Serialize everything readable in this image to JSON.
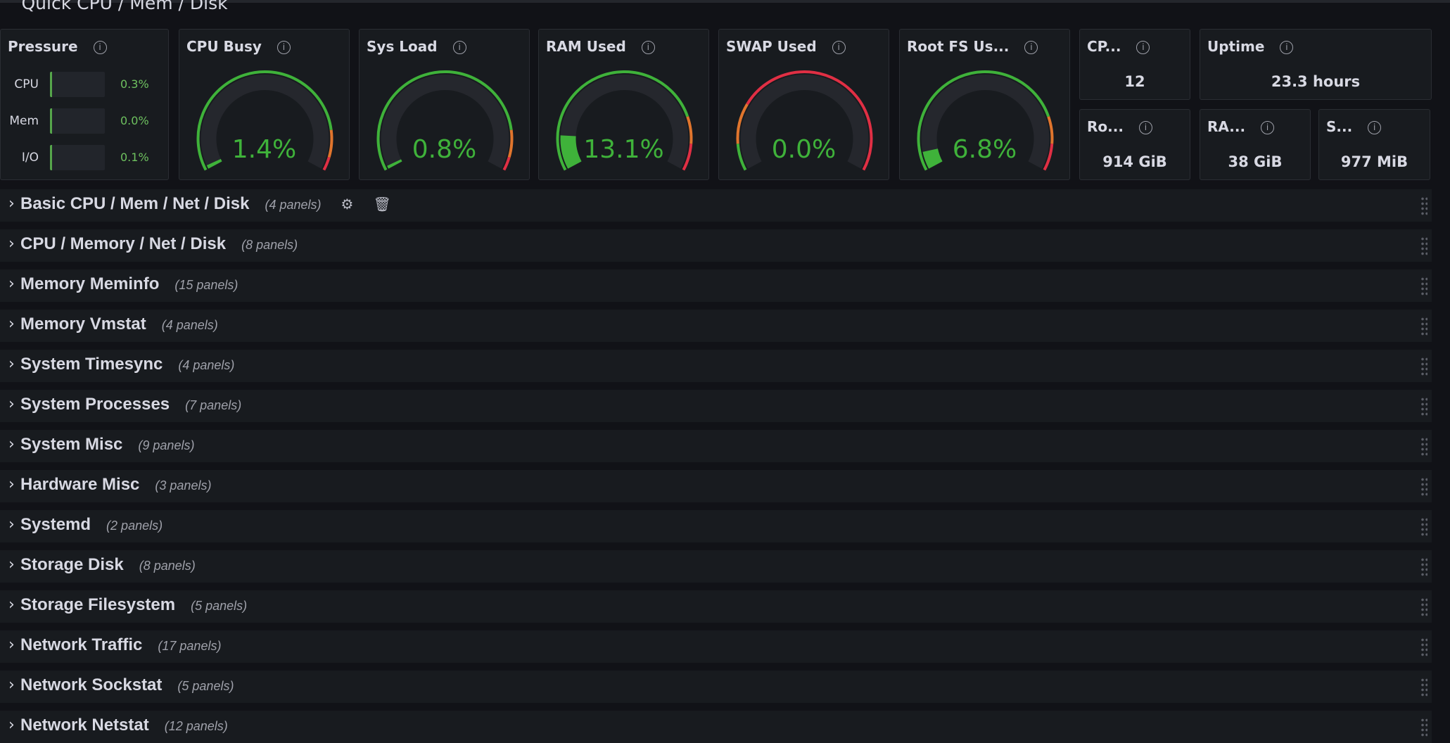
{
  "section": {
    "title": "Quick CPU / Mem / Disk",
    "chevron": "chevron-down-icon"
  },
  "colors": {
    "green": "#3fb23a",
    "orange": "#e0752d",
    "red": "#e02f44",
    "track": "#25272d"
  },
  "pressure": {
    "title": "Pressure",
    "items": [
      {
        "label": "CPU",
        "value": "0.3%"
      },
      {
        "label": "Mem",
        "value": "0.0%"
      },
      {
        "label": "I/O",
        "value": "0.1%"
      }
    ]
  },
  "gauges": [
    {
      "title": "CPU Busy",
      "value": "1.4%",
      "percent": 1.4,
      "thresholds": [
        {
          "from": 0,
          "color": "green"
        },
        {
          "from": 85,
          "color": "orange"
        },
        {
          "from": 95,
          "color": "red"
        }
      ]
    },
    {
      "title": "Sys Load",
      "value": "0.8%",
      "percent": 0.8,
      "thresholds": [
        {
          "from": 0,
          "color": "green"
        },
        {
          "from": 85,
          "color": "orange"
        },
        {
          "from": 95,
          "color": "red"
        }
      ]
    },
    {
      "title": "RAM Used",
      "value": "13.1%",
      "percent": 13.1,
      "thresholds": [
        {
          "from": 0,
          "color": "green"
        },
        {
          "from": 80,
          "color": "orange"
        },
        {
          "from": 90,
          "color": "red"
        }
      ]
    },
    {
      "title": "SWAP Used",
      "value": "0.0%",
      "percent": 0,
      "thresholds": [
        {
          "from": 0,
          "color": "green"
        },
        {
          "from": 10,
          "color": "orange"
        },
        {
          "from": 25,
          "color": "red"
        }
      ]
    },
    {
      "title": "Root FS Us...",
      "value": "6.8%",
      "percent": 6.8,
      "thresholds": [
        {
          "from": 0,
          "color": "green"
        },
        {
          "from": 80,
          "color": "orange"
        },
        {
          "from": 90,
          "color": "red"
        }
      ]
    }
  ],
  "stats": [
    {
      "title": "CP...",
      "value": "12"
    },
    {
      "title": "Uptime",
      "value": "23.3 hours"
    },
    {
      "title": "Ro...",
      "value": "914 GiB"
    },
    {
      "title": "RA...",
      "value": "38 GiB"
    },
    {
      "title": "S...",
      "value": "977 MiB"
    }
  ],
  "info_glyph": "i",
  "chevron_right": "›",
  "rows": [
    {
      "title": "Basic CPU / Mem / Net / Disk",
      "count": "(4 panels)"
    },
    {
      "title": "CPU / Memory / Net / Disk",
      "count": "(8 panels)"
    },
    {
      "title": "Memory Meminfo",
      "count": "(15 panels)"
    },
    {
      "title": "Memory Vmstat",
      "count": "(4 panels)"
    },
    {
      "title": "System Timesync",
      "count": "(4 panels)"
    },
    {
      "title": "System Processes",
      "count": "(7 panels)"
    },
    {
      "title": "System Misc",
      "count": "(9 panels)"
    },
    {
      "title": "Hardware Misc",
      "count": "(3 panels)"
    },
    {
      "title": "Systemd",
      "count": "(2 panels)"
    },
    {
      "title": "Storage Disk",
      "count": "(8 panels)"
    },
    {
      "title": "Storage Filesystem",
      "count": "(5 panels)"
    },
    {
      "title": "Network Traffic",
      "count": "(17 panels)"
    },
    {
      "title": "Network Sockstat",
      "count": "(5 panels)"
    },
    {
      "title": "Network Netstat",
      "count": "(12 panels)"
    }
  ]
}
